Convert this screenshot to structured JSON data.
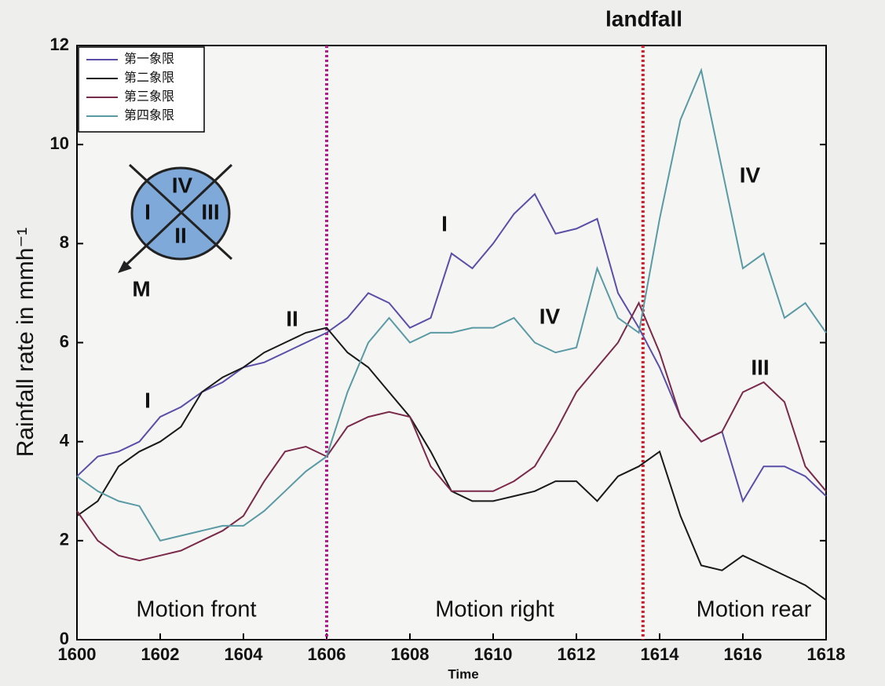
{
  "chart_data": {
    "type": "line",
    "xlabel": "Time",
    "ylabel": "Rainfall rate in mmh⁻¹",
    "x": [
      1600,
      1600.5,
      1601,
      1601.5,
      1602,
      1602.5,
      1603,
      1603.5,
      1604,
      1604.5,
      1605,
      1605.5,
      1606,
      1606.5,
      1607,
      1607.5,
      1608,
      1608.5,
      1609,
      1609.5,
      1610,
      1610.5,
      1611,
      1611.5,
      1612,
      1612.5,
      1613,
      1613.5,
      1614,
      1614.5,
      1615,
      1615.5,
      1616,
      1616.5,
      1617,
      1617.5,
      1618
    ],
    "series": [
      {
        "name": "第一象限",
        "color": "#5a4fa8",
        "values": [
          3.3,
          3.7,
          3.8,
          4.0,
          4.5,
          4.7,
          5.0,
          5.2,
          5.5,
          5.6,
          5.8,
          6.0,
          6.2,
          6.5,
          7.0,
          6.8,
          6.3,
          6.5,
          7.8,
          7.5,
          8.0,
          8.6,
          9.0,
          8.2,
          8.3,
          8.5,
          7.0,
          6.3,
          5.5,
          4.5,
          4.0,
          4.2,
          2.8,
          3.5,
          3.5,
          3.3,
          2.9
        ]
      },
      {
        "name": "第二象限",
        "color": "#1a1a1a",
        "values": [
          2.5,
          2.8,
          3.5,
          3.8,
          4.0,
          4.3,
          5.0,
          5.3,
          5.5,
          5.8,
          6.0,
          6.2,
          6.3,
          5.8,
          5.5,
          5.0,
          4.5,
          3.8,
          3.0,
          2.8,
          2.8,
          2.9,
          3.0,
          3.2,
          3.2,
          2.8,
          3.3,
          3.5,
          3.8,
          2.5,
          1.5,
          1.4,
          1.7,
          1.5,
          1.3,
          1.1,
          0.8
        ]
      },
      {
        "name": "第三象限",
        "color": "#7a2a4a",
        "values": [
          2.6,
          2.0,
          1.7,
          1.6,
          1.7,
          1.8,
          2.0,
          2.2,
          2.5,
          3.2,
          3.8,
          3.9,
          3.7,
          4.3,
          4.5,
          4.6,
          4.5,
          3.5,
          3.0,
          3.0,
          3.0,
          3.2,
          3.5,
          4.2,
          5.0,
          5.5,
          6.0,
          6.8,
          5.8,
          4.5,
          4.0,
          4.2,
          5.0,
          5.2,
          4.8,
          3.5,
          3.0
        ]
      },
      {
        "name": "第四象限",
        "color": "#5a9aa4",
        "values": [
          3.3,
          3.0,
          2.8,
          2.7,
          2.0,
          2.1,
          2.2,
          2.3,
          2.3,
          2.6,
          3.0,
          3.4,
          3.7,
          5.0,
          6.0,
          6.5,
          6.0,
          6.2,
          6.2,
          6.3,
          6.3,
          6.5,
          6.0,
          5.8,
          5.9,
          7.5,
          6.5,
          6.2,
          8.5,
          10.5,
          11.5,
          9.5,
          7.5,
          7.8,
          6.5,
          6.8,
          6.2
        ]
      }
    ],
    "xlim": [
      1600,
      1618
    ],
    "xticks": [
      1600,
      1602,
      1604,
      1606,
      1608,
      1610,
      1612,
      1614,
      1616,
      1618
    ],
    "ylim": [
      0,
      12
    ],
    "yticks": [
      0,
      2,
      4,
      6,
      8,
      10,
      12
    ],
    "vlines": [
      {
        "x": 1606,
        "color": "#b0208c"
      },
      {
        "x": 1613.6,
        "color": "#d0202c"
      }
    ],
    "legend": "upper left",
    "annotations": [
      "landfall",
      "I",
      "II",
      "I",
      "IV",
      "IV",
      "III",
      "Motion front",
      "Motion right",
      "Motion rear"
    ],
    "diagram": {
      "labels": [
        "IV",
        "I",
        "III",
        "II"
      ],
      "direction": "M"
    }
  }
}
